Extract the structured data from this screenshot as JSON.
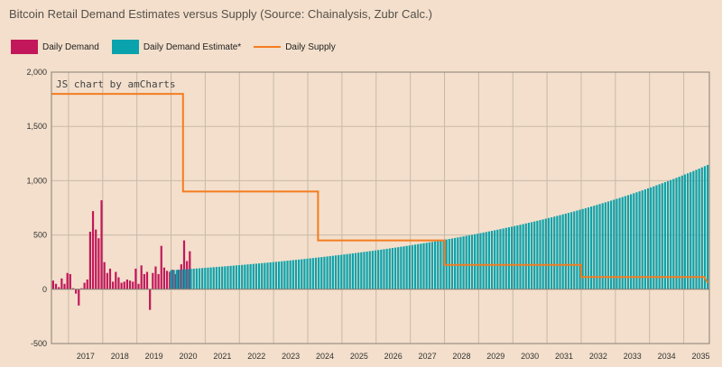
{
  "title": "Bitcoin Retail Demand Estimates versus Supply (Source: Chainalysis, Zubr Calc.)",
  "credit": "JS chart by amCharts",
  "colors": {
    "demand": "#c2185b",
    "estimate": "#0aa3ad",
    "supply": "#f47c20",
    "grid": "#c9b9a8",
    "background": "#f3dfcb"
  },
  "chart_data": {
    "type": "bar",
    "title": "Bitcoin Retail Demand Estimates versus Supply (Source: Chainalysis, Zubr Calc.)",
    "ylim": [
      -500,
      2000
    ],
    "yticks": [
      -500,
      0,
      500,
      1000,
      1500,
      2000
    ],
    "ytick_labels": [
      "-500",
      "0",
      "500",
      "1,000",
      "1,500",
      "2,000"
    ],
    "xlim": [
      2016.5,
      2035.75
    ],
    "xtick_labels": [
      "2017",
      "2018",
      "2019",
      "2020",
      "2021",
      "2022",
      "2023",
      "2024",
      "2025",
      "2026",
      "2027",
      "2028",
      "2029",
      "2030",
      "2031",
      "2032",
      "2033",
      "2034",
      "2035"
    ],
    "legend": [
      {
        "name": "Daily Demand",
        "kind": "bar",
        "color": "#c2185b"
      },
      {
        "name": "Daily Demand Estimate*",
        "kind": "bar",
        "color": "#0aa3ad"
      },
      {
        "name": "Daily Supply",
        "kind": "line",
        "color": "#f47c20"
      }
    ],
    "series": [
      {
        "name": "Daily Demand",
        "start": 2016.55,
        "step": 0.0833,
        "values": [
          80,
          50,
          20,
          100,
          50,
          150,
          140,
          10,
          -40,
          -150,
          10,
          60,
          90,
          530,
          720,
          550,
          470,
          820,
          250,
          150,
          190,
          70,
          160,
          110,
          60,
          70,
          90,
          80,
          70,
          190,
          50,
          220,
          140,
          160,
          -190,
          150,
          210,
          140,
          400,
          200,
          170,
          160,
          180,
          140,
          180,
          230,
          450,
          260,
          350
        ]
      },
      {
        "name": "Daily Demand Estimate*",
        "start": 2020.0,
        "end": 2035.7,
        "count": 190,
        "start_value": 175,
        "end_value": 1145,
        "growth": "exponential"
      },
      {
        "name": "Daily Supply",
        "points": [
          [
            2016.5,
            1800
          ],
          [
            2020.35,
            1800
          ],
          [
            2020.35,
            900
          ],
          [
            2024.3,
            900
          ],
          [
            2024.3,
            450
          ],
          [
            2028.0,
            450
          ],
          [
            2028.0,
            225
          ],
          [
            2032.0,
            225
          ],
          [
            2032.0,
            112.5
          ],
          [
            2035.6,
            112.5
          ],
          [
            2035.7,
            60
          ]
        ]
      }
    ]
  }
}
